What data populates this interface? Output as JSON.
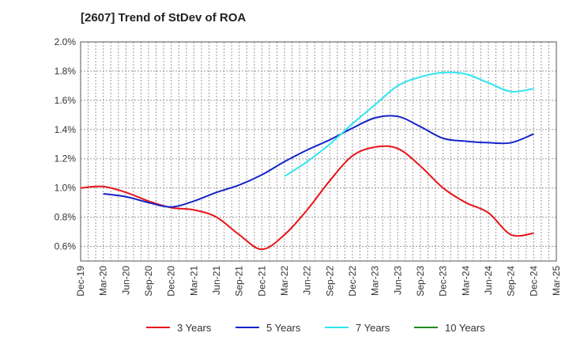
{
  "chart_data": {
    "type": "line",
    "title": "[2607]  Trend of StDev of ROA",
    "xlabel": "",
    "ylabel": "",
    "x": [
      "Dec-19",
      "Mar-20",
      "Jun-20",
      "Sep-20",
      "Dec-20",
      "Mar-21",
      "Jun-21",
      "Sep-21",
      "Dec-21",
      "Mar-22",
      "Jun-22",
      "Sep-22",
      "Dec-22",
      "Mar-23",
      "Jun-23",
      "Sep-23",
      "Dec-23",
      "Mar-24",
      "Jun-24",
      "Sep-24",
      "Dec-24",
      "Mar-25"
    ],
    "ylim": [
      0.5,
      2.0
    ],
    "yticks": [
      0.6,
      0.8,
      1.0,
      1.2,
      1.4,
      1.6,
      1.8,
      2.0
    ],
    "ytick_labels": [
      "0.6%",
      "0.8%",
      "1.0%",
      "1.2%",
      "1.4%",
      "1.6%",
      "1.8%",
      "2.0%"
    ],
    "grid": true,
    "legend_position": "bottom",
    "series": [
      {
        "name": "3 Years",
        "color": "#e8141a",
        "values": [
          1.0,
          1.01,
          0.97,
          0.91,
          0.865,
          0.85,
          0.8,
          0.68,
          0.58,
          0.68,
          0.85,
          1.05,
          1.22,
          1.28,
          1.27,
          1.15,
          1.0,
          0.9,
          0.83,
          0.68,
          0.69,
          null
        ]
      },
      {
        "name": "5 Years",
        "color": "#1524c8",
        "values": [
          null,
          0.96,
          0.94,
          0.9,
          0.87,
          0.91,
          0.97,
          1.02,
          1.09,
          1.18,
          1.26,
          1.33,
          1.41,
          1.48,
          1.49,
          1.42,
          1.34,
          1.32,
          1.31,
          1.31,
          1.37,
          null
        ]
      },
      {
        "name": "7 Years",
        "color": "#2ee6f0",
        "values": [
          null,
          null,
          null,
          null,
          null,
          null,
          null,
          null,
          null,
          1.08,
          1.18,
          1.3,
          1.44,
          1.57,
          1.7,
          1.76,
          1.79,
          1.78,
          1.72,
          1.66,
          1.68,
          null
        ]
      },
      {
        "name": "10 Years",
        "color": "#1f8a1f",
        "values": [
          null,
          null,
          null,
          null,
          null,
          null,
          null,
          null,
          null,
          null,
          null,
          null,
          null,
          null,
          null,
          null,
          null,
          null,
          null,
          null,
          null,
          null
        ]
      }
    ]
  }
}
